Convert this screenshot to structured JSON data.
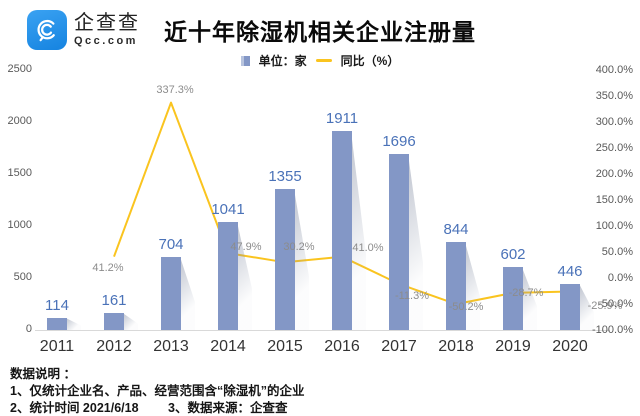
{
  "header": {
    "logo_name": "企查查",
    "logo_domain": "Qcc.com",
    "title": "近十年除湿机相关企业注册量"
  },
  "legend": {
    "bar_label": "单位：家",
    "line_label": "同比（%）"
  },
  "chart_data": {
    "type": "bar+line",
    "categories": [
      "2011",
      "2012",
      "2013",
      "2014",
      "2015",
      "2016",
      "2017",
      "2018",
      "2019",
      "2020"
    ],
    "series": [
      {
        "name": "单位：家",
        "type": "bar",
        "axis": "left",
        "color": "#8397c6",
        "values": [
          114,
          161,
          704,
          1041,
          1355,
          1911,
          1696,
          844,
          602,
          446
        ]
      },
      {
        "name": "同比（%）",
        "type": "line",
        "axis": "right",
        "color": "#fac41f",
        "values": [
          null,
          41.2,
          337.3,
          47.9,
          30.2,
          41.0,
          -11.3,
          -50.2,
          -28.7,
          -25.9
        ],
        "point_labels": [
          null,
          "41.2%",
          "337.3%",
          "47.9%",
          "30.2%",
          "41.0%",
          "-11.3%",
          "-50.2%",
          "-28.7%",
          "-25.9%"
        ]
      }
    ],
    "left_axis": {
      "min": 0,
      "max": 2500,
      "ticks": [
        "0",
        "500",
        "1000",
        "1500",
        "2000",
        "2500"
      ]
    },
    "right_axis": {
      "min": -100,
      "max": 400,
      "ticks": [
        "400.0%",
        "350.0%",
        "300.0%",
        "250.0%",
        "200.0%",
        "150.0%",
        "100.0%",
        "50.0%",
        "0.0%",
        "-50.0%",
        "-100.0%"
      ]
    },
    "grid": false,
    "legend_position": "top-center",
    "label_offsets": [
      null,
      [
        -6,
        11
      ],
      [
        4,
        -13
      ],
      [
        18,
        -6
      ],
      [
        14,
        -15
      ],
      [
        26,
        -9
      ],
      [
        13,
        12
      ],
      [
        10,
        3
      ],
      [
        13,
        0
      ],
      [
        35,
        15
      ]
    ]
  },
  "footer": {
    "title": "数据说明 ：",
    "note1": "1、仅统计企业名、产品、经营范围含“除湿机”的企业",
    "note2": "2、统计时间 2021/6/18",
    "note3": "3、数据来源：企查查"
  }
}
